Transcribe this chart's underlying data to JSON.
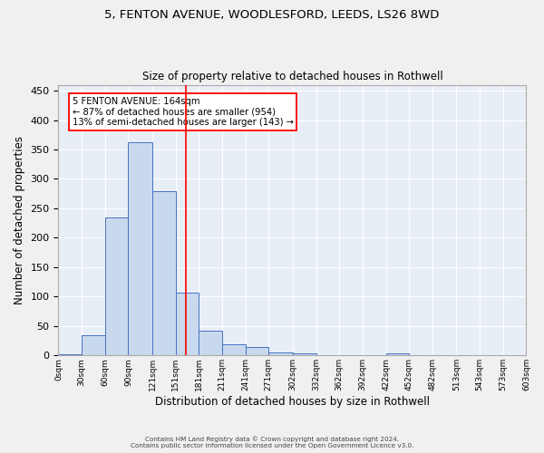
{
  "title_line1": "5, FENTON AVENUE, WOODLESFORD, LEEDS, LS26 8WD",
  "title_line2": "Size of property relative to detached houses in Rothwell",
  "xlabel": "Distribution of detached houses by size in Rothwell",
  "ylabel": "Number of detached properties",
  "bar_left_edges": [
    0,
    30,
    60,
    90,
    121,
    151,
    181,
    211,
    241,
    271,
    302,
    332,
    362,
    392,
    422,
    452,
    482,
    513,
    543,
    573
  ],
  "bar_widths": [
    30,
    30,
    30,
    31,
    30,
    30,
    30,
    30,
    30,
    31,
    30,
    30,
    30,
    30,
    30,
    30,
    31,
    30,
    30,
    30
  ],
  "bar_heights": [
    2,
    34,
    234,
    362,
    279,
    106,
    42,
    19,
    14,
    5,
    3,
    0,
    0,
    0,
    3,
    0,
    0,
    0,
    1,
    0
  ],
  "bar_facecolor": "#c9d9ed",
  "bar_edgecolor": "#4472c4",
  "xlim": [
    0,
    603
  ],
  "ylim": [
    0,
    460
  ],
  "yticks": [
    0,
    50,
    100,
    150,
    200,
    250,
    300,
    350,
    400,
    450
  ],
  "xtick_labels": [
    "0sqm",
    "30sqm",
    "60sqm",
    "90sqm",
    "121sqm",
    "151sqm",
    "181sqm",
    "211sqm",
    "241sqm",
    "271sqm",
    "302sqm",
    "332sqm",
    "362sqm",
    "392sqm",
    "422sqm",
    "452sqm",
    "482sqm",
    "513sqm",
    "543sqm",
    "573sqm",
    "603sqm"
  ],
  "xtick_positions": [
    0,
    30,
    60,
    90,
    121,
    151,
    181,
    211,
    241,
    271,
    302,
    332,
    362,
    392,
    422,
    452,
    482,
    513,
    543,
    573,
    603
  ],
  "red_line_x": 164,
  "annotation_text_line1": "5 FENTON AVENUE: 164sqm",
  "annotation_text_line2": "← 87% of detached houses are smaller (954)",
  "annotation_text_line3": "13% of semi-detached houses are larger (143) →",
  "background_color": "#e8eef6",
  "grid_color": "#ffffff",
  "fig_background": "#f0f0f0",
  "footer_line1": "Contains HM Land Registry data © Crown copyright and database right 2024.",
  "footer_line2": "Contains public sector information licensed under the Open Government Licence v3.0."
}
